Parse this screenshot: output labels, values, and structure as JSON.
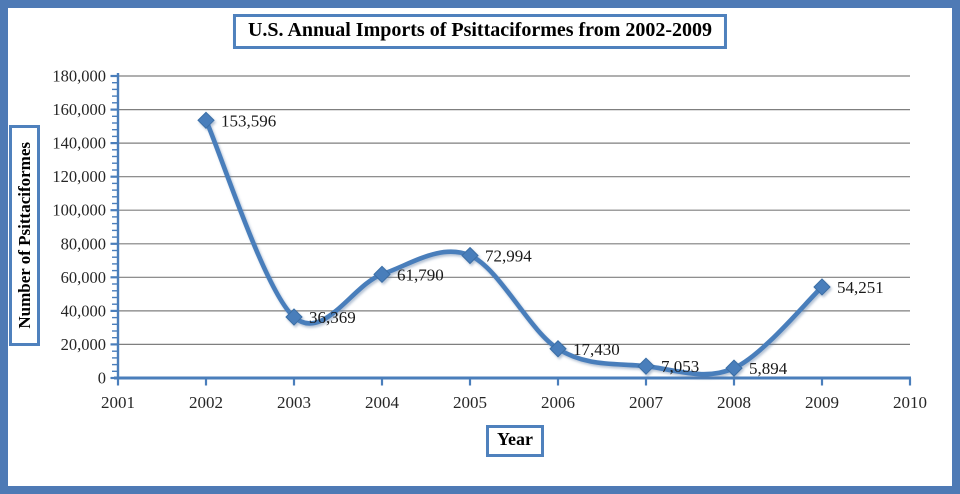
{
  "colors": {
    "frame_border": "#4e7ab5",
    "box_border": "#4f81bd",
    "series": "#4a7ebb",
    "series_edge": "#3a6ea5",
    "axis": "#4a7ebb",
    "gridline": "#7f7f7f",
    "label_text": "#1a1a1a",
    "tick_text": "#262626",
    "background": "#ffffff"
  },
  "title": {
    "text": "U.S. Annual Imports of Psittaciformes from 2002-2009"
  },
  "axes": {
    "y_title": "Number of Psittaciformes",
    "x_title": "Year"
  },
  "chart_data": {
    "type": "line",
    "title": "U.S. Annual Imports of Psittaciformes from 2002-2009",
    "xlabel": "Year",
    "ylabel": "Number of Psittaciformes",
    "x": [
      2002,
      2003,
      2004,
      2005,
      2006,
      2007,
      2008,
      2009
    ],
    "values": [
      153596,
      36369,
      61790,
      72994,
      17430,
      7053,
      5894,
      54251
    ],
    "data_labels": [
      "153,596",
      "36,369",
      "61,790",
      "72,994",
      "17,430",
      "7,053",
      "5,894",
      "54,251"
    ],
    "x_tick_labels": [
      "2001",
      "2002",
      "2003",
      "2004",
      "2005",
      "2006",
      "2007",
      "2008",
      "2009",
      "2010"
    ],
    "x_ticks": [
      2001,
      2002,
      2003,
      2004,
      2005,
      2006,
      2007,
      2008,
      2009,
      2010
    ],
    "y_tick_labels": [
      "0",
      "20,000",
      "40,000",
      "60,000",
      "80,000",
      "100,000",
      "120,000",
      "140,000",
      "160,000",
      "180,000"
    ],
    "xlim": [
      2001,
      2010
    ],
    "ylim": [
      0,
      180000
    ],
    "y_tick_step": 20000,
    "y_minor_step": 4000,
    "grid": true,
    "legend": "none",
    "smooth": true,
    "marker": "diamond"
  }
}
